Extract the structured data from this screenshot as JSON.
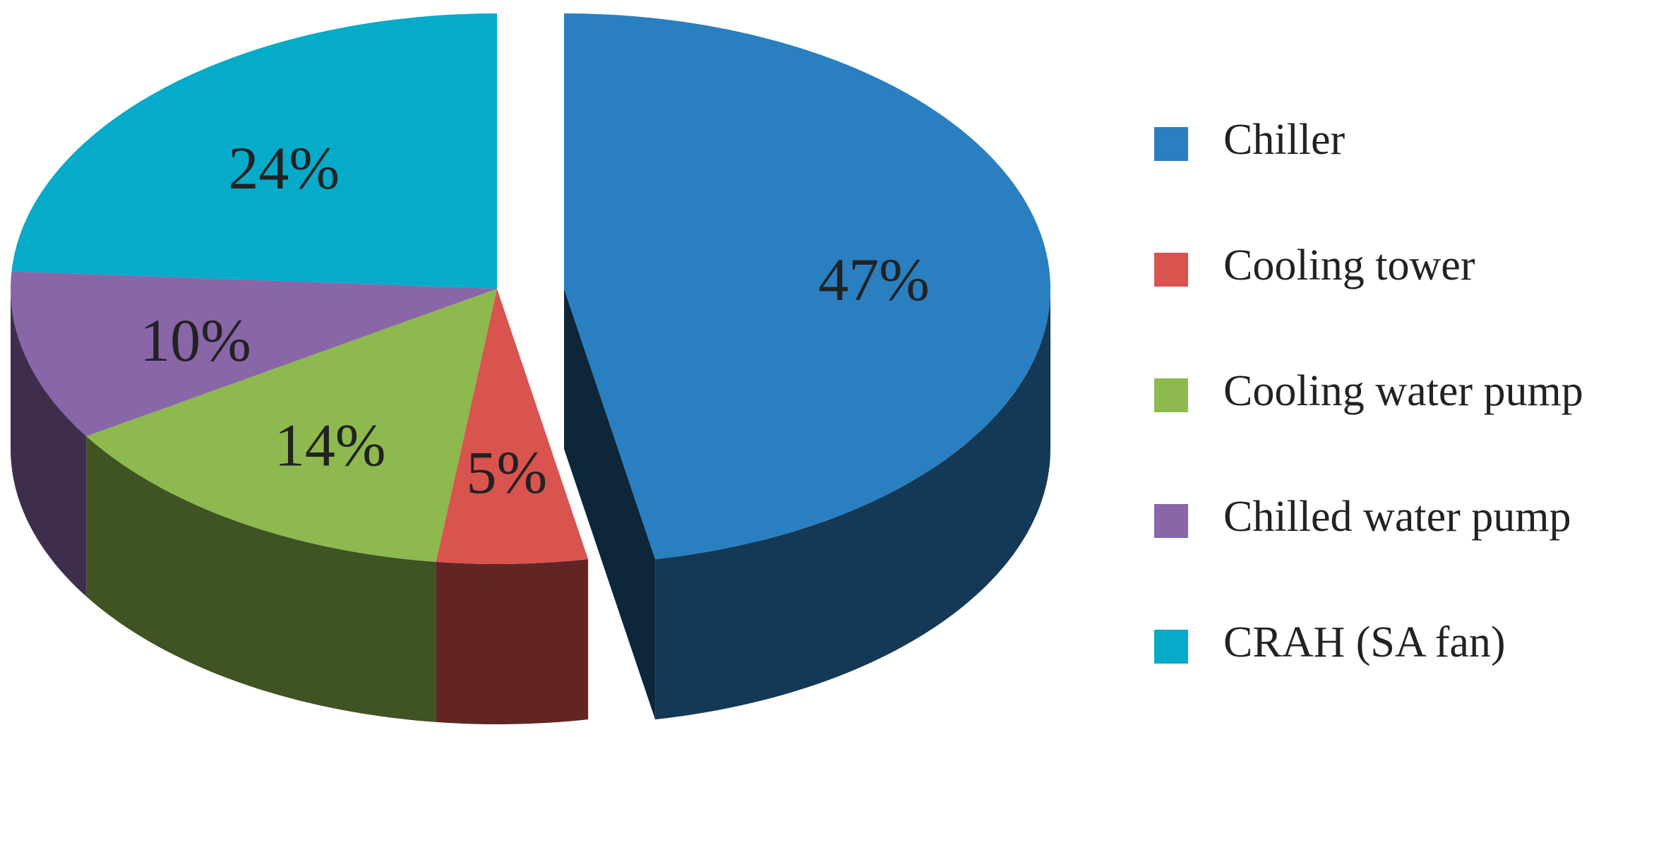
{
  "chart_data": {
    "type": "pie",
    "categories": [
      "Chiller",
      "Cooling tower",
      "Cooling water pump",
      "Chilled water pump",
      "CRAH (SA fan)"
    ],
    "values": [
      47,
      5,
      14,
      10,
      24
    ],
    "value_labels": [
      "47%",
      "5%",
      "14%",
      "10%",
      "24%"
    ],
    "colors": [
      "#2a7fc0",
      "#d9534f",
      "#8db94e",
      "#8966a8",
      "#05abc8"
    ],
    "exploded": [
      "Chiller"
    ],
    "legend": "right"
  }
}
